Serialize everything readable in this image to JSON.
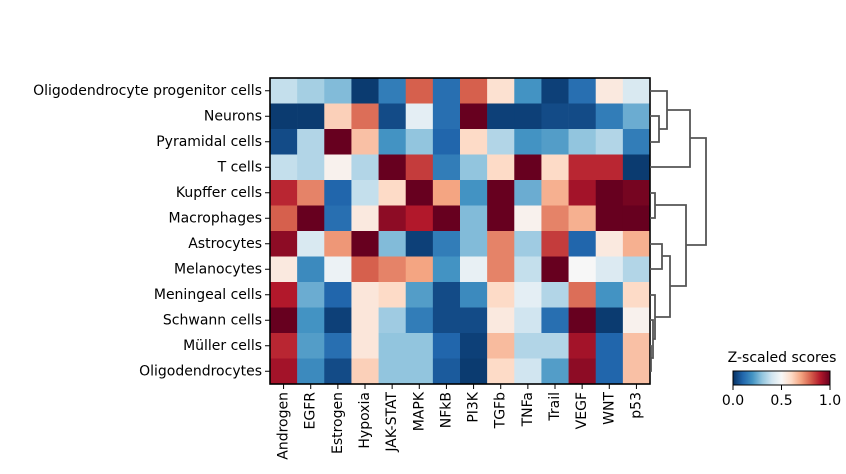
{
  "chart_data": {
    "type": "heatmap",
    "rows": [
      "Oligodendrocyte progenitor cells",
      "Neurons",
      "Pyramidal cells",
      "T cells",
      "Kupffer cells",
      "Macrophages",
      "Astrocytes",
      "Melanocytes",
      "Meningeal cells",
      "Schwann cells",
      "Müller cells",
      "Oligodendrocytes"
    ],
    "columns": [
      "Androgen",
      "EGFR",
      "Estrogen",
      "Hypoxia",
      "JAK-STAT",
      "MAPK",
      "NFkB",
      "PI3K",
      "TGFb",
      "TNFa",
      "Trail",
      "VEGF",
      "WNT",
      "p53"
    ],
    "values": [
      [
        0.38,
        0.33,
        0.28,
        0.02,
        0.15,
        0.8,
        0.12,
        0.8,
        0.58,
        0.2,
        0.03,
        0.12,
        0.55,
        0.42
      ],
      [
        0.02,
        0.02,
        0.62,
        0.78,
        0.05,
        0.45,
        0.12,
        1.0,
        0.03,
        0.03,
        0.05,
        0.05,
        0.15,
        0.25
      ],
      [
        0.05,
        0.35,
        1.0,
        0.65,
        0.2,
        0.3,
        0.1,
        0.6,
        0.35,
        0.2,
        0.22,
        0.3,
        0.35,
        0.15
      ],
      [
        0.38,
        0.35,
        0.52,
        0.35,
        1.0,
        0.85,
        0.15,
        0.3,
        0.6,
        1.0,
        0.6,
        0.88,
        0.88,
        0.02
      ],
      [
        0.88,
        0.75,
        0.1,
        0.38,
        0.6,
        1.0,
        0.7,
        0.2,
        1.0,
        0.25,
        0.68,
        0.92,
        1.0,
        0.98
      ],
      [
        0.8,
        1.0,
        0.12,
        0.55,
        0.95,
        0.9,
        1.0,
        0.28,
        1.0,
        0.52,
        0.75,
        0.68,
        1.0,
        1.0
      ],
      [
        0.95,
        0.42,
        0.72,
        1.0,
        0.28,
        0.03,
        0.15,
        0.28,
        0.75,
        0.32,
        0.85,
        0.1,
        0.55,
        0.68
      ],
      [
        0.55,
        0.18,
        0.47,
        0.8,
        0.75,
        0.7,
        0.2,
        0.46,
        0.75,
        0.38,
        1.0,
        0.5,
        0.43,
        0.35
      ],
      [
        0.9,
        0.25,
        0.1,
        0.56,
        0.6,
        0.22,
        0.05,
        0.18,
        0.6,
        0.45,
        0.35,
        0.78,
        0.2,
        0.6
      ],
      [
        1.0,
        0.2,
        0.03,
        0.56,
        0.32,
        0.15,
        0.05,
        0.05,
        0.55,
        0.4,
        0.12,
        1.0,
        0.02,
        0.52
      ],
      [
        0.88,
        0.22,
        0.12,
        0.56,
        0.3,
        0.3,
        0.1,
        0.03,
        0.66,
        0.35,
        0.35,
        0.92,
        0.1,
        0.65
      ],
      [
        0.92,
        0.18,
        0.05,
        0.62,
        0.3,
        0.3,
        0.08,
        0.02,
        0.6,
        0.4,
        0.22,
        0.95,
        0.1,
        0.65
      ]
    ],
    "colors": [
      "#053061",
      "#2166ac",
      "#4393c3",
      "#92c5de",
      "#d1e5f0",
      "#f7f7f7",
      "#fddbc7",
      "#f4a582",
      "#d6604d",
      "#b2182b",
      "#67001f"
    ],
    "colorbar_title": "Z-scaled scores",
    "clim": [
      0,
      1
    ],
    "cticks": [
      {
        "value": 0,
        "label": "0.0"
      },
      0.5,
      {
        "value": 1,
        "label": "1.0"
      }
    ]
  }
}
